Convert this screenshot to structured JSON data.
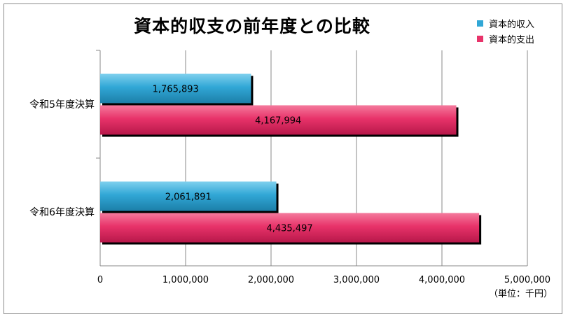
{
  "chart_data": {
    "type": "bar",
    "orientation": "horizontal",
    "title": "資本的収支の前年度との比較",
    "categories": [
      "令和5年度決算",
      "令和6年度決算"
    ],
    "series": [
      {
        "name": "資本的収入",
        "values": [
          1765893,
          2061891
        ],
        "labels": [
          "1,765,893",
          "2,061,891"
        ],
        "color": "#31A7D6"
      },
      {
        "name": "資本的支出",
        "values": [
          4167994,
          4435497
        ],
        "labels": [
          "4,167,994",
          "4,435,497"
        ],
        "color": "#E8336A"
      }
    ],
    "xlim": [
      0,
      5000000
    ],
    "xticks": [
      0,
      1000000,
      2000000,
      3000000,
      4000000,
      5000000
    ],
    "xtick_labels": [
      "0",
      "1,000,000",
      "2,000,000",
      "3,000,000",
      "4,000,000",
      "5,000,000"
    ],
    "unit_label": "（単位：千円）",
    "grid": true,
    "legend_position": "top-right"
  }
}
